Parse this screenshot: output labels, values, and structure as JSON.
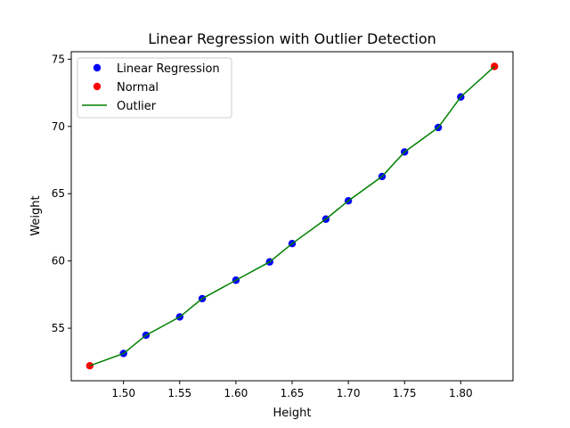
{
  "chart_data": {
    "type": "scatter",
    "title": "Linear Regression with Outlier Detection",
    "xlabel": "Height",
    "ylabel": "Weight",
    "xlim": [
      1.4535,
      1.8465
    ],
    "ylim": [
      51.096,
      75.554
    ],
    "xticks": [
      1.5,
      1.55,
      1.6,
      1.65,
      1.7,
      1.75,
      1.8
    ],
    "xtick_labels": [
      "1.50",
      "1.55",
      "1.60",
      "1.65",
      "1.70",
      "1.75",
      "1.80"
    ],
    "yticks": [
      55,
      60,
      65,
      70,
      75
    ],
    "ytick_labels": [
      "55",
      "60",
      "65",
      "70",
      "75"
    ],
    "grid": false,
    "legend_position": "upper-left",
    "series": [
      {
        "name": "Linear Regression",
        "kind": "scatter",
        "color": "#0000ff",
        "x": [
          1.5,
          1.52,
          1.55,
          1.57,
          1.6,
          1.63,
          1.65,
          1.68,
          1.7,
          1.73,
          1.75,
          1.78,
          1.8
        ],
        "y": [
          53.12,
          54.48,
          55.84,
          57.2,
          58.57,
          59.93,
          61.29,
          63.11,
          64.47,
          66.28,
          68.1,
          69.92,
          72.19
        ]
      },
      {
        "name": "Normal",
        "kind": "scatter",
        "color": "#ff0000",
        "x": [
          1.47,
          1.83
        ],
        "y": [
          52.21,
          74.46
        ]
      },
      {
        "name": "Outlier",
        "kind": "line",
        "color": "#008000",
        "x": [
          1.47,
          1.5,
          1.52,
          1.55,
          1.57,
          1.6,
          1.63,
          1.65,
          1.68,
          1.7,
          1.73,
          1.75,
          1.78,
          1.8,
          1.83
        ],
        "y": [
          52.21,
          53.12,
          54.48,
          55.84,
          57.2,
          58.57,
          59.93,
          61.29,
          63.11,
          64.47,
          66.28,
          68.1,
          69.92,
          72.19,
          74.46
        ]
      }
    ]
  }
}
